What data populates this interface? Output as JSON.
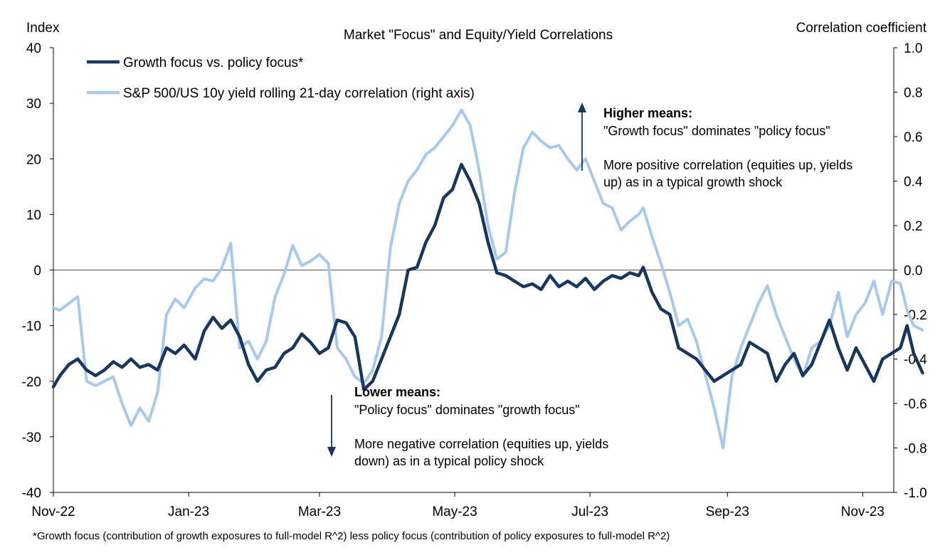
{
  "chart_data": {
    "type": "line",
    "title": "Market \"Focus\" and Equity/Yield Correlations",
    "left_axis": {
      "label": "Index",
      "ylim": [
        -40,
        40
      ],
      "ticks": [
        "40",
        "30",
        "20",
        "10",
        "0",
        "-10",
        "-20",
        "-30",
        "-40"
      ]
    },
    "right_axis": {
      "label": "Correlation coefficient",
      "ylim": [
        -1.0,
        1.0
      ],
      "ticks": [
        "1.0",
        "0.8",
        "0.6",
        "0.4",
        "0.2",
        "0.0",
        "-0.2",
        "-0.4",
        "-0.6",
        "-0.8",
        "-1.0"
      ]
    },
    "x_axis": {
      "range": [
        "2022-11-01",
        "2023-11-15"
      ],
      "ticks": [
        {
          "label": "Nov-22",
          "date": "2022-11-01"
        },
        {
          "label": "Jan-23",
          "date": "2023-01-01"
        },
        {
          "label": "Mar-23",
          "date": "2023-03-01"
        },
        {
          "label": "May-23",
          "date": "2023-05-01"
        },
        {
          "label": "Jul-23",
          "date": "2023-07-01"
        },
        {
          "label": "Sep-23",
          "date": "2023-09-01"
        },
        {
          "label": "Nov-23",
          "date": "2023-11-01"
        }
      ]
    },
    "legend_position": "top-left",
    "series": [
      {
        "name": "Growth focus vs. policy focus*",
        "axis": "left",
        "color": "#17375e",
        "points": [
          [
            "2022-11-01",
            -21
          ],
          [
            "2022-11-04",
            -19
          ],
          [
            "2022-11-08",
            -17
          ],
          [
            "2022-11-12",
            -16
          ],
          [
            "2022-11-16",
            -18
          ],
          [
            "2022-11-20",
            -19
          ],
          [
            "2022-11-24",
            -18
          ],
          [
            "2022-11-28",
            -16.5
          ],
          [
            "2022-12-02",
            -17.5
          ],
          [
            "2022-12-06",
            -16
          ],
          [
            "2022-12-10",
            -17.5
          ],
          [
            "2022-12-14",
            -17
          ],
          [
            "2022-12-18",
            -18
          ],
          [
            "2022-12-22",
            -14
          ],
          [
            "2022-12-26",
            -15
          ],
          [
            "2022-12-30",
            -13.5
          ],
          [
            "2023-01-04",
            -16
          ],
          [
            "2023-01-08",
            -11
          ],
          [
            "2023-01-12",
            -8.5
          ],
          [
            "2023-01-16",
            -10.5
          ],
          [
            "2023-01-20",
            -9
          ],
          [
            "2023-01-24",
            -12
          ],
          [
            "2023-01-28",
            -17
          ],
          [
            "2023-02-01",
            -20
          ],
          [
            "2023-02-05",
            -18
          ],
          [
            "2023-02-09",
            -17.5
          ],
          [
            "2023-02-13",
            -15
          ],
          [
            "2023-02-17",
            -14
          ],
          [
            "2023-02-21",
            -11.5
          ],
          [
            "2023-02-25",
            -13
          ],
          [
            "2023-03-01",
            -15
          ],
          [
            "2023-03-05",
            -14
          ],
          [
            "2023-03-09",
            -9
          ],
          [
            "2023-03-13",
            -9.5
          ],
          [
            "2023-03-17",
            -12
          ],
          [
            "2023-03-21",
            -21.5
          ],
          [
            "2023-03-25",
            -20
          ],
          [
            "2023-03-29",
            -16
          ],
          [
            "2023-04-02",
            -12
          ],
          [
            "2023-04-06",
            -8
          ],
          [
            "2023-04-10",
            0
          ],
          [
            "2023-04-14",
            0.5
          ],
          [
            "2023-04-18",
            5
          ],
          [
            "2023-04-22",
            8
          ],
          [
            "2023-04-26",
            13
          ],
          [
            "2023-04-30",
            14.5
          ],
          [
            "2023-05-04",
            19
          ],
          [
            "2023-05-08",
            16
          ],
          [
            "2023-05-12",
            12
          ],
          [
            "2023-05-16",
            5
          ],
          [
            "2023-05-20",
            -0.5
          ],
          [
            "2023-05-24",
            -1
          ],
          [
            "2023-05-28",
            -2
          ],
          [
            "2023-06-01",
            -3
          ],
          [
            "2023-06-05",
            -2.5
          ],
          [
            "2023-06-09",
            -3.5
          ],
          [
            "2023-06-13",
            -1
          ],
          [
            "2023-06-17",
            -3
          ],
          [
            "2023-06-21",
            -2
          ],
          [
            "2023-06-25",
            -3
          ],
          [
            "2023-06-29",
            -1.5
          ],
          [
            "2023-07-03",
            -3.5
          ],
          [
            "2023-07-07",
            -2
          ],
          [
            "2023-07-11",
            -1
          ],
          [
            "2023-07-15",
            -1.5
          ],
          [
            "2023-07-19",
            -0.5
          ],
          [
            "2023-07-23",
            -1
          ],
          [
            "2023-07-25",
            0.5
          ],
          [
            "2023-07-29",
            -4
          ],
          [
            "2023-08-02",
            -7
          ],
          [
            "2023-08-06",
            -8
          ],
          [
            "2023-08-10",
            -14
          ],
          [
            "2023-08-14",
            -15
          ],
          [
            "2023-08-18",
            -16
          ],
          [
            "2023-08-22",
            -18
          ],
          [
            "2023-08-26",
            -20
          ],
          [
            "2023-08-30",
            -19
          ],
          [
            "2023-09-03",
            -18
          ],
          [
            "2023-09-07",
            -17
          ],
          [
            "2023-09-11",
            -13
          ],
          [
            "2023-09-15",
            -14
          ],
          [
            "2023-09-19",
            -15
          ],
          [
            "2023-09-23",
            -20
          ],
          [
            "2023-09-27",
            -17
          ],
          [
            "2023-10-01",
            -15
          ],
          [
            "2023-10-05",
            -19
          ],
          [
            "2023-10-09",
            -17
          ],
          [
            "2023-10-13",
            -13
          ],
          [
            "2023-10-17",
            -9
          ],
          [
            "2023-10-21",
            -14
          ],
          [
            "2023-10-25",
            -18
          ],
          [
            "2023-10-29",
            -14
          ],
          [
            "2023-11-02",
            -17
          ],
          [
            "2023-11-06",
            -20
          ],
          [
            "2023-11-10",
            -16
          ],
          [
            "2023-11-14",
            -15
          ],
          [
            "2023-11-18",
            -14
          ],
          [
            "2023-11-21",
            -10
          ],
          [
            "2023-11-24",
            -15
          ],
          [
            "2023-11-28",
            -18.5
          ]
        ]
      },
      {
        "name": "S&P 500/US 10y yield rolling 21-day correlation (right axis)",
        "axis": "right",
        "color": "#a6c9ec",
        "points": [
          [
            "2022-11-01",
            -0.17
          ],
          [
            "2022-11-04",
            -0.18
          ],
          [
            "2022-11-08",
            -0.15
          ],
          [
            "2022-11-12",
            -0.12
          ],
          [
            "2022-11-16",
            -0.5
          ],
          [
            "2022-11-20",
            -0.52
          ],
          [
            "2022-11-24",
            -0.5
          ],
          [
            "2022-11-28",
            -0.48
          ],
          [
            "2022-12-02",
            -0.6
          ],
          [
            "2022-12-06",
            -0.7
          ],
          [
            "2022-12-10",
            -0.62
          ],
          [
            "2022-12-14",
            -0.68
          ],
          [
            "2022-12-18",
            -0.55
          ],
          [
            "2022-12-22",
            -0.2
          ],
          [
            "2022-12-26",
            -0.13
          ],
          [
            "2022-12-30",
            -0.17
          ],
          [
            "2023-01-04",
            -0.08
          ],
          [
            "2023-01-08",
            -0.04
          ],
          [
            "2023-01-12",
            -0.05
          ],
          [
            "2023-01-16",
            0.01
          ],
          [
            "2023-01-20",
            0.12
          ],
          [
            "2023-01-24",
            -0.35
          ],
          [
            "2023-01-28",
            -0.32
          ],
          [
            "2023-02-01",
            -0.4
          ],
          [
            "2023-02-05",
            -0.32
          ],
          [
            "2023-02-09",
            -0.12
          ],
          [
            "2023-02-13",
            -0.02
          ],
          [
            "2023-02-17",
            0.11
          ],
          [
            "2023-02-21",
            0.02
          ],
          [
            "2023-02-25",
            0.04
          ],
          [
            "2023-03-01",
            0.07
          ],
          [
            "2023-03-05",
            0.03
          ],
          [
            "2023-03-09",
            -0.35
          ],
          [
            "2023-03-13",
            -0.4
          ],
          [
            "2023-03-17",
            -0.48
          ],
          [
            "2023-03-21",
            -0.51
          ],
          [
            "2023-03-25",
            -0.45
          ],
          [
            "2023-03-29",
            -0.3
          ],
          [
            "2023-04-02",
            0.1
          ],
          [
            "2023-04-06",
            0.3
          ],
          [
            "2023-04-10",
            0.4
          ],
          [
            "2023-04-14",
            0.45
          ],
          [
            "2023-04-18",
            0.52
          ],
          [
            "2023-04-22",
            0.55
          ],
          [
            "2023-04-26",
            0.6
          ],
          [
            "2023-04-30",
            0.65
          ],
          [
            "2023-05-04",
            0.72
          ],
          [
            "2023-05-08",
            0.65
          ],
          [
            "2023-05-12",
            0.45
          ],
          [
            "2023-05-16",
            0.2
          ],
          [
            "2023-05-20",
            0.05
          ],
          [
            "2023-05-24",
            0.08
          ],
          [
            "2023-05-28",
            0.35
          ],
          [
            "2023-06-01",
            0.55
          ],
          [
            "2023-06-05",
            0.62
          ],
          [
            "2023-06-09",
            0.58
          ],
          [
            "2023-06-13",
            0.55
          ],
          [
            "2023-06-17",
            0.56
          ],
          [
            "2023-06-21",
            0.5
          ],
          [
            "2023-06-25",
            0.45
          ],
          [
            "2023-06-29",
            0.5
          ],
          [
            "2023-07-03",
            0.4
          ],
          [
            "2023-07-07",
            0.3
          ],
          [
            "2023-07-11",
            0.28
          ],
          [
            "2023-07-15",
            0.18
          ],
          [
            "2023-07-19",
            0.22
          ],
          [
            "2023-07-23",
            0.25
          ],
          [
            "2023-07-25",
            0.28
          ],
          [
            "2023-07-29",
            0.15
          ],
          [
            "2023-08-02",
            0.03
          ],
          [
            "2023-08-06",
            -0.1
          ],
          [
            "2023-08-10",
            -0.25
          ],
          [
            "2023-08-14",
            -0.22
          ],
          [
            "2023-08-18",
            -0.32
          ],
          [
            "2023-08-22",
            -0.47
          ],
          [
            "2023-08-26",
            -0.62
          ],
          [
            "2023-08-30",
            -0.8
          ],
          [
            "2023-09-03",
            -0.48
          ],
          [
            "2023-09-07",
            -0.35
          ],
          [
            "2023-09-11",
            -0.25
          ],
          [
            "2023-09-15",
            -0.15
          ],
          [
            "2023-09-19",
            -0.07
          ],
          [
            "2023-09-23",
            -0.2
          ],
          [
            "2023-09-27",
            -0.3
          ],
          [
            "2023-10-01",
            -0.4
          ],
          [
            "2023-10-05",
            -0.48
          ],
          [
            "2023-10-09",
            -0.35
          ],
          [
            "2023-10-13",
            -0.32
          ],
          [
            "2023-10-17",
            -0.25
          ],
          [
            "2023-10-21",
            -0.1
          ],
          [
            "2023-10-25",
            -0.3
          ],
          [
            "2023-10-29",
            -0.2
          ],
          [
            "2023-11-02",
            -0.15
          ],
          [
            "2023-11-06",
            -0.05
          ],
          [
            "2023-11-10",
            -0.2
          ],
          [
            "2023-11-14",
            -0.05
          ],
          [
            "2023-11-18",
            -0.06
          ],
          [
            "2023-11-21",
            -0.18
          ],
          [
            "2023-11-24",
            -0.25
          ],
          [
            "2023-11-28",
            -0.27
          ]
        ]
      }
    ],
    "annotations": {
      "higher": {
        "heading": "Higher means:",
        "line1": "\"Growth focus\" dominates \"policy focus\"",
        "line2": "More positive correlation (equities up, yields",
        "line3": "up) as in a typical growth shock"
      },
      "lower": {
        "heading": "Lower means:",
        "line1": "\"Policy focus\" dominates \"growth focus\"",
        "line2": "More negative correlation (equities up, yields",
        "line3": "down) as in a typical policy shock"
      }
    },
    "footnote": "*Growth focus (contribution of growth exposures to full-model R^2) less policy focus (contribution of policy exposures to full-model R^2)"
  }
}
